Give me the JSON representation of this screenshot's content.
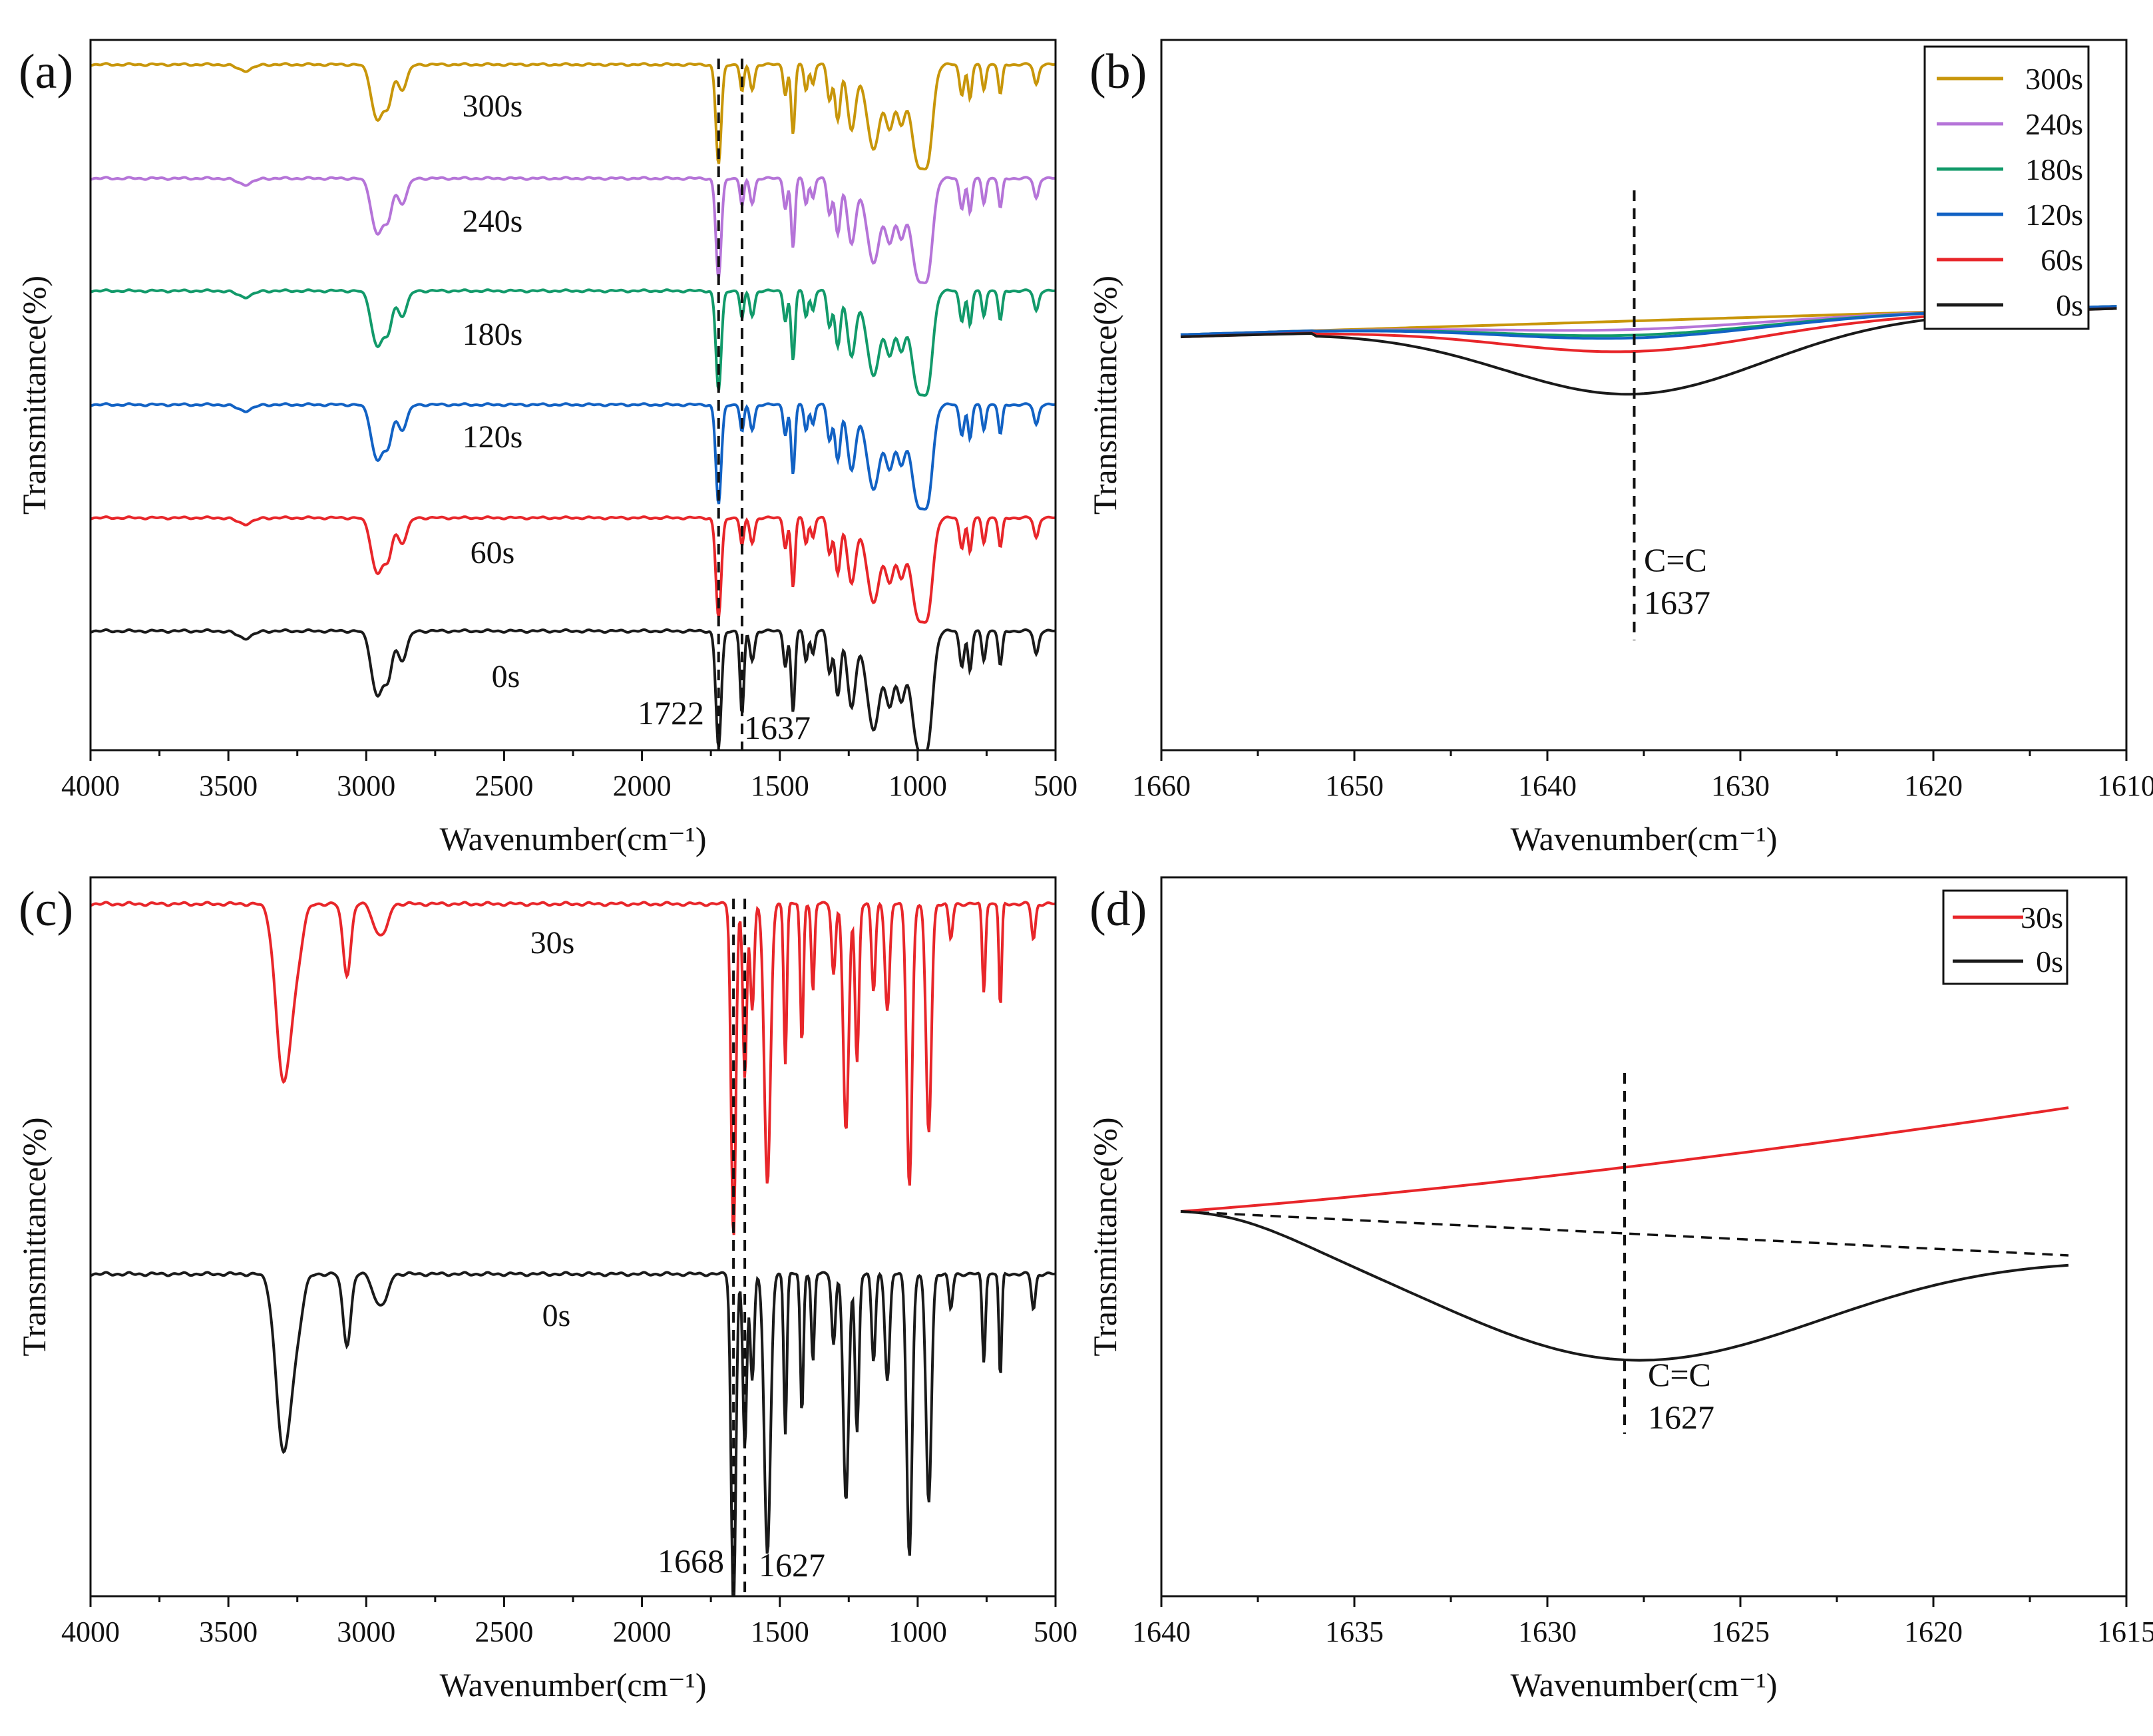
{
  "colors": {
    "s300": "#c8960a",
    "s240": "#b574d8",
    "s180": "#129a6a",
    "s120": "#1262c4",
    "s60": "#e8262a",
    "s0": "#1a1a1a",
    "s30": "#e8262a",
    "frame": "#111111"
  },
  "chart_data": [
    {
      "panel": "(a)",
      "type": "line",
      "xlabel": "Wavenumber(cm⁻¹)",
      "ylabel": "Transmittance(%)",
      "xlim": [
        4000,
        500
      ],
      "x_reversed": true,
      "xticks": [
        4000,
        3500,
        3000,
        2500,
        2000,
        1500,
        1000,
        500
      ],
      "y_ticks_shown": false,
      "series": [
        {
          "name": "300s",
          "color": "#c8960a"
        },
        {
          "name": "240s",
          "color": "#b574d8"
        },
        {
          "name": "180s",
          "color": "#129a6a"
        },
        {
          "name": "120s",
          "color": "#1262c4"
        },
        {
          "name": "60s",
          "color": "#e8262a"
        },
        {
          "name": "0s",
          "color": "#1a1a1a"
        }
      ],
      "peak_markers": [
        {
          "x": 1722,
          "label": "1722",
          "style": "dashed"
        },
        {
          "x": 1637,
          "label": "1637",
          "style": "dashed"
        }
      ]
    },
    {
      "panel": "(b)",
      "type": "line",
      "xlabel": "Wavenumber(cm⁻¹)",
      "ylabel": "Transmittance(%)",
      "xlim": [
        1660,
        1610
      ],
      "x_reversed": true,
      "xticks": [
        1660,
        1650,
        1640,
        1630,
        1620,
        1610
      ],
      "y_ticks_shown": false,
      "legend_position": "top-right",
      "legend": [
        {
          "name": "300s",
          "color": "#c8960a"
        },
        {
          "name": "240s",
          "color": "#b574d8"
        },
        {
          "name": "180s",
          "color": "#129a6a"
        },
        {
          "name": "120s",
          "color": "#1262c4"
        },
        {
          "name": "60s",
          "color": "#e8262a"
        },
        {
          "name": "0s",
          "color": "#1a1a1a"
        }
      ],
      "annotation": {
        "x": 1635.5,
        "lines": [
          "C=C",
          "1637"
        ],
        "style": "dashed vertical line"
      }
    },
    {
      "panel": "(c)",
      "type": "line",
      "xlabel": "Wavenumber(cm⁻¹)",
      "ylabel": "Transmittance(%)",
      "xlim": [
        4000,
        500
      ],
      "x_reversed": true,
      "xticks": [
        4000,
        3500,
        3000,
        2500,
        2000,
        1500,
        1000,
        500
      ],
      "y_ticks_shown": false,
      "series": [
        {
          "name": "30s",
          "color": "#e8262a"
        },
        {
          "name": "0s",
          "color": "#1a1a1a"
        }
      ],
      "peak_markers": [
        {
          "x": 1668,
          "label": "1668",
          "style": "dashed"
        },
        {
          "x": 1627,
          "label": "1627",
          "style": "dashed"
        }
      ]
    },
    {
      "panel": "(d)",
      "type": "line",
      "xlabel": "Wavenumber(cm⁻¹)",
      "ylabel": "Transmittance(%)",
      "xlim": [
        1640,
        1615
      ],
      "x_reversed": true,
      "xticks": [
        1640,
        1635,
        1630,
        1625,
        1620,
        1615
      ],
      "y_ticks_shown": false,
      "legend_position": "top-right",
      "legend": [
        {
          "name": "30s",
          "color": "#e8262a"
        },
        {
          "name": "0s",
          "color": "#1a1a1a"
        }
      ],
      "annotation": {
        "x": 1628,
        "lines": [
          "C=C",
          "1627"
        ],
        "style": "dashed vertical line"
      },
      "baseline": {
        "from": 1639.5,
        "to": 1616.5,
        "style": "dashed"
      }
    }
  ]
}
